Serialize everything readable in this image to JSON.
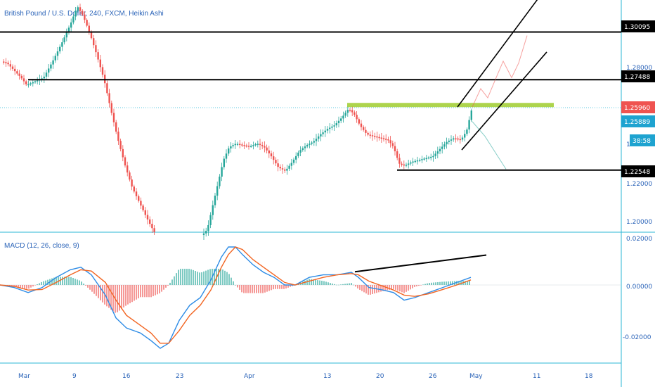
{
  "colors": {
    "up": "#26a69a",
    "down": "#ef5350",
    "macd_line": "#2e8ce6",
    "signal_line": "#f26522",
    "support_zone": "#9fcc2e",
    "axis": "#2a63b8",
    "black": "#000000",
    "cyan": "#2bb7d6"
  },
  "chart_data": [
    {
      "type": "candlestick",
      "title": "British Pound / U.S. Dollar, 240, FXCM, Heikin Ashi",
      "y_ticks": [
        "1.28000",
        "1.24000",
        "1.22000",
        "1.20000"
      ],
      "x_ticks": [
        "Mar",
        "9",
        "16",
        "23",
        "Apr",
        "13",
        "20",
        "26",
        "May",
        "11",
        "18"
      ],
      "price_path": [
        [
          0,
          1.285
        ],
        [
          10,
          1.284
        ],
        [
          20,
          1.28
        ],
        [
          30,
          1.276
        ],
        [
          38,
          1.272
        ],
        [
          50,
          1.274
        ],
        [
          62,
          1.276
        ],
        [
          75,
          1.285
        ],
        [
          88,
          1.295
        ],
        [
          100,
          1.305
        ],
        [
          110,
          1.315
        ],
        [
          118,
          1.31
        ],
        [
          128,
          1.3
        ],
        [
          138,
          1.288
        ],
        [
          148,
          1.275
        ],
        [
          158,
          1.258
        ],
        [
          168,
          1.242
        ],
        [
          178,
          1.228
        ],
        [
          188,
          1.216
        ],
        [
          198,
          1.208
        ],
        [
          208,
          1.2
        ],
        [
          216,
          1.194
        ],
        [
          222,
          1.19
        ],
        [
          288,
          1.19
        ],
        [
          295,
          1.193
        ],
        [
          302,
          1.205
        ],
        [
          310,
          1.218
        ],
        [
          318,
          1.231
        ],
        [
          326,
          1.238
        ],
        [
          336,
          1.24
        ],
        [
          346,
          1.239
        ],
        [
          356,
          1.2385
        ],
        [
          366,
          1.24
        ],
        [
          376,
          1.238
        ],
        [
          386,
          1.233
        ],
        [
          396,
          1.227
        ],
        [
          406,
          1.225
        ],
        [
          416,
          1.23
        ],
        [
          426,
          1.236
        ],
        [
          436,
          1.239
        ],
        [
          446,
          1.241
        ],
        [
          456,
          1.245
        ],
        [
          466,
          1.248
        ],
        [
          476,
          1.25
        ],
        [
          486,
          1.254
        ],
        [
          496,
          1.259
        ],
        [
          504,
          1.256
        ],
        [
          512,
          1.25
        ],
        [
          522,
          1.245
        ],
        [
          532,
          1.244
        ],
        [
          542,
          1.243
        ],
        [
          552,
          1.242
        ],
        [
          560,
          1.238
        ],
        [
          568,
          1.229
        ],
        [
          576,
          1.228
        ],
        [
          586,
          1.23
        ],
        [
          596,
          1.231
        ],
        [
          606,
          1.232
        ],
        [
          616,
          1.233
        ],
        [
          626,
          1.237
        ],
        [
          636,
          1.241
        ],
        [
          646,
          1.243
        ],
        [
          656,
          1.242
        ],
        [
          664,
          1.247
        ],
        [
          672,
          1.26
        ]
      ],
      "levels": [
        {
          "label": "1.30095",
          "value": 1.30095
        },
        {
          "label": "1.27488",
          "value": 1.27488
        },
        {
          "label": "1.25960",
          "value": 1.2596
        },
        {
          "label": "1.25889",
          "value": 1.25889
        },
        {
          "label": "38:58",
          "value": 1.243
        },
        {
          "label": "1.22548",
          "value": 1.22548
        }
      ],
      "legend": "British Pound / U.S. Dollar, 240, FXCM, Heikin Ashi"
    },
    {
      "type": "macd",
      "title": "MACD (12, 26, close, 9)",
      "y_ticks": [
        "0.02000",
        "0.00000",
        "-0.02000"
      ],
      "macd": [
        [
          0,
          0.0
        ],
        [
          20,
          -0.001
        ],
        [
          40,
          -0.003
        ],
        [
          60,
          -0.001
        ],
        [
          80,
          0.003
        ],
        [
          100,
          0.006
        ],
        [
          115,
          0.007
        ],
        [
          130,
          0.004
        ],
        [
          150,
          -0.004
        ],
        [
          165,
          -0.013
        ],
        [
          180,
          -0.017
        ],
        [
          200,
          -0.019
        ],
        [
          215,
          -0.022
        ],
        [
          228,
          -0.025
        ],
        [
          240,
          -0.023
        ],
        [
          255,
          -0.014
        ],
        [
          270,
          -0.008
        ],
        [
          285,
          -0.005
        ],
        [
          300,
          0.002
        ],
        [
          315,
          0.011
        ],
        [
          325,
          0.015
        ],
        [
          335,
          0.015
        ],
        [
          345,
          0.012
        ],
        [
          360,
          0.008
        ],
        [
          375,
          0.005
        ],
        [
          390,
          0.003
        ],
        [
          405,
          0.0
        ],
        [
          420,
          0.0
        ],
        [
          440,
          0.003
        ],
        [
          460,
          0.004
        ],
        [
          480,
          0.004
        ],
        [
          500,
          0.005
        ],
        [
          510,
          0.003
        ],
        [
          525,
          -0.001
        ],
        [
          545,
          -0.002
        ],
        [
          560,
          -0.003
        ],
        [
          575,
          -0.006
        ],
        [
          590,
          -0.005
        ],
        [
          610,
          -0.003
        ],
        [
          630,
          -0.001
        ],
        [
          650,
          0.001
        ],
        [
          670,
          0.003
        ]
      ],
      "signal": [
        [
          0,
          0.0
        ],
        [
          20,
          -0.0005
        ],
        [
          40,
          -0.002
        ],
        [
          60,
          -0.0018
        ],
        [
          80,
          0.001
        ],
        [
          100,
          0.004
        ],
        [
          115,
          0.006
        ],
        [
          130,
          0.0055
        ],
        [
          150,
          0.001
        ],
        [
          165,
          -0.006
        ],
        [
          180,
          -0.012
        ],
        [
          200,
          -0.016
        ],
        [
          215,
          -0.019
        ],
        [
          228,
          -0.023
        ],
        [
          240,
          -0.023
        ],
        [
          255,
          -0.018
        ],
        [
          270,
          -0.012
        ],
        [
          285,
          -0.008
        ],
        [
          300,
          -0.002
        ],
        [
          315,
          0.007
        ],
        [
          325,
          0.012
        ],
        [
          335,
          0.015
        ],
        [
          345,
          0.014
        ],
        [
          360,
          0.01
        ],
        [
          375,
          0.007
        ],
        [
          390,
          0.004
        ],
        [
          405,
          0.001
        ],
        [
          420,
          0.0
        ],
        [
          440,
          0.0015
        ],
        [
          460,
          0.003
        ],
        [
          480,
          0.004
        ],
        [
          500,
          0.0045
        ],
        [
          510,
          0.004
        ],
        [
          525,
          0.0015
        ],
        [
          545,
          -0.0005
        ],
        [
          560,
          -0.002
        ],
        [
          575,
          -0.004
        ],
        [
          590,
          -0.0045
        ],
        [
          610,
          -0.0035
        ],
        [
          630,
          -0.0018
        ],
        [
          650,
          0.0
        ],
        [
          670,
          0.002
        ]
      ]
    }
  ]
}
